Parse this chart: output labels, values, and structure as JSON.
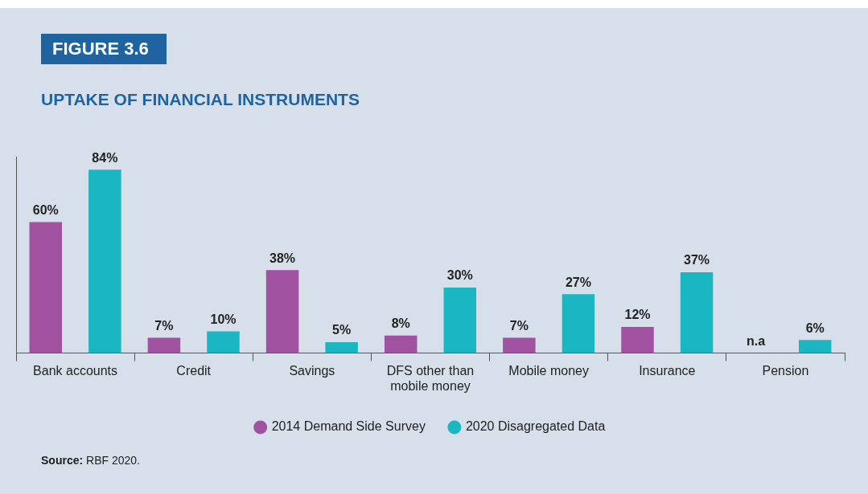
{
  "chart_data": {
    "type": "bar",
    "title": "FIGURE 3.6",
    "subtitle": "UPTAKE OF FINANCIAL INSTRUMENTS",
    "categories": [
      "Bank accounts",
      "Credit",
      "Savings",
      "DFS other than mobile money",
      "Mobile money",
      "Insurance",
      "Pension"
    ],
    "series": [
      {
        "name": "2014 Demand Side Survey",
        "color": "#a0519f",
        "values": [
          60,
          7,
          38,
          8,
          7,
          12,
          null
        ],
        "value_labels": [
          "60%",
          "7%",
          "38%",
          "8%",
          "7%",
          "12%",
          "n.a"
        ]
      },
      {
        "name": "2020 Disagregated Data",
        "color": "#1ab6c2",
        "values": [
          84,
          10,
          5,
          30,
          27,
          37,
          6
        ],
        "value_labels": [
          "84%",
          "10%",
          "5%",
          "30%",
          "27%",
          "37%",
          "6%"
        ]
      }
    ],
    "legend": "bottom",
    "grid": false,
    "tick_labels": "x",
    "annotations": [
      "Source: RBF 2020."
    ]
  }
}
